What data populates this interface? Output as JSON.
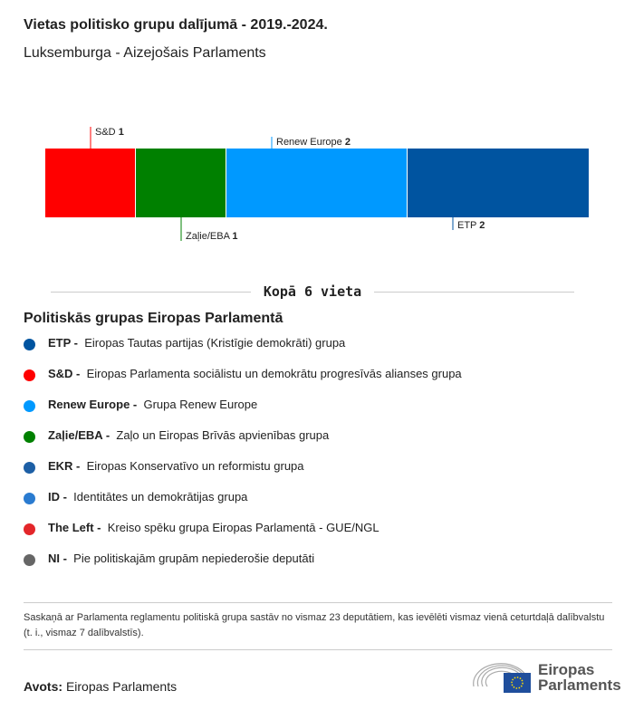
{
  "header": {
    "title": "Vietas politisko grupu dalījumā - 2019.-2024.",
    "subtitle": "Luksemburga - Aizejošais Parlaments"
  },
  "chart_data": {
    "type": "bar",
    "stacked": true,
    "orientation": "horizontal",
    "categories": [
      "S&D",
      "Zaļie/EBA",
      "Renew Europe",
      "ETP"
    ],
    "values": [
      1,
      1,
      2,
      2
    ],
    "colors": [
      "#ff0000",
      "#008000",
      "#0099ff",
      "#0054a0"
    ],
    "label_positions": [
      "top",
      "bottom",
      "top",
      "bottom"
    ],
    "total_label": "Kopā 6 vieta"
  },
  "legend": {
    "title": "Politiskās grupas Eiropas Parlamentā",
    "items": [
      {
        "abbr": "ETP -",
        "name": "Eiropas Tautas partijas (Kristīgie demokrāti) grupa",
        "color": "#0054a0"
      },
      {
        "abbr": "S&D -",
        "name": "Eiropas Parlamenta sociālistu un demokrātu progresīvās alianses grupa",
        "color": "#ff0000"
      },
      {
        "abbr": "Renew Europe -",
        "name": "Grupa Renew Europe",
        "color": "#0099ff"
      },
      {
        "abbr": "Zaļie/EBA -",
        "name": "Zaļo un Eiropas Brīvās apvienības grupa",
        "color": "#008000"
      },
      {
        "abbr": "EKR -",
        "name": "Eiropas Konservatīvo un reformistu grupa",
        "color": "#1d5fa5"
      },
      {
        "abbr": "ID -",
        "name": "Identitātes un demokrātijas grupa",
        "color": "#2a7bd0"
      },
      {
        "abbr": "The Left -",
        "name": "Kreiso spēku grupa Eiropas Parlamentā - GUE/NGL",
        "color": "#e3262a"
      },
      {
        "abbr": "NI -",
        "name": "Pie politiskajām grupām nepiederošie deputāti",
        "color": "#666666"
      }
    ]
  },
  "footer": {
    "note": "Saskaņā ar Parlamenta reglamentu politiskā grupa sastāv no vismaz 23 deputātiem, kas ievēlēti vismaz vienā ceturtdaļā dalībvalstu (t. i., vismaz 7 dalībvalstīs).",
    "source_label": "Avots:",
    "source_value": "Eiropas Parlaments",
    "logo_text": "Eiropas Parlaments"
  }
}
